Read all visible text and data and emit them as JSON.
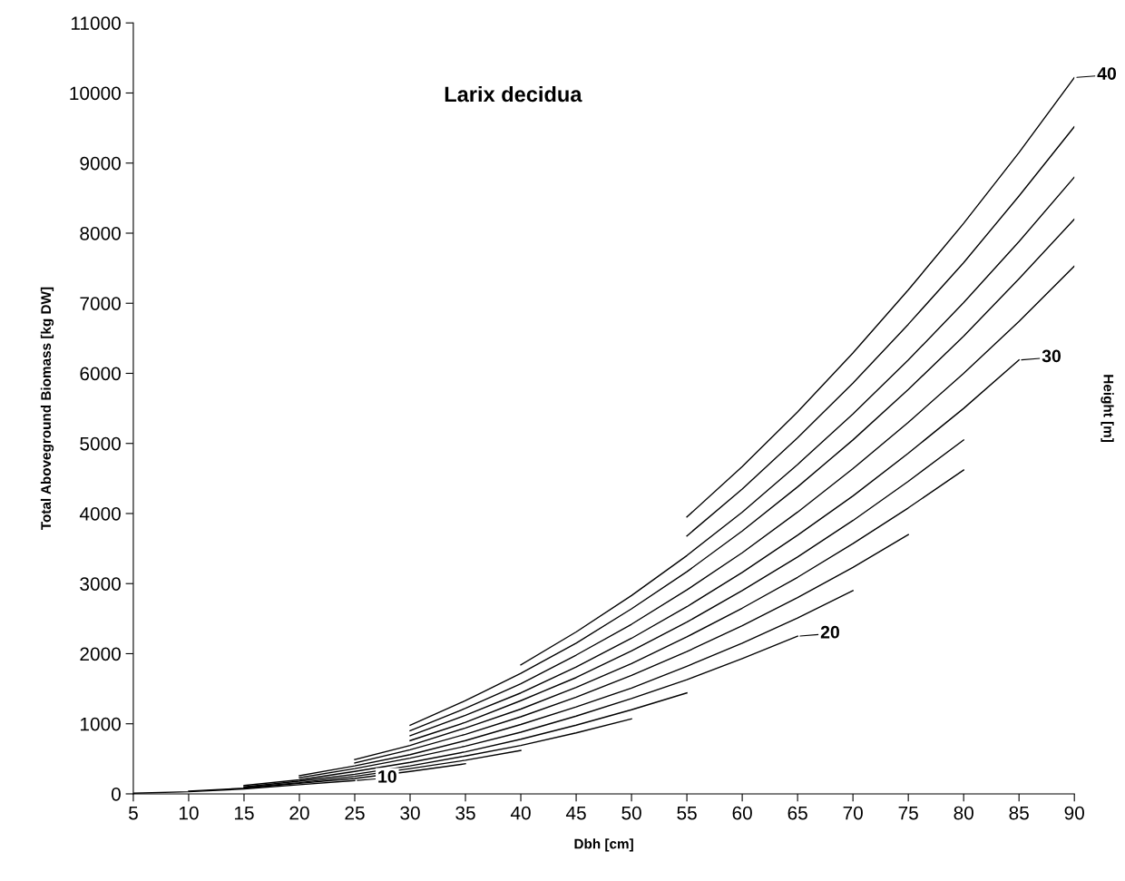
{
  "chart_data": {
    "type": "line",
    "title": "Larix decidua",
    "xlabel": "Dbh [cm]",
    "ylabel": "Total Aboveground Biomass [kg DW]",
    "y2label": "Height [m]",
    "xlim": [
      5,
      90
    ],
    "xticks": [
      5,
      10,
      15,
      20,
      25,
      30,
      35,
      40,
      45,
      50,
      55,
      60,
      65,
      70,
      75,
      80,
      85,
      90
    ],
    "ylim": [
      0,
      11000
    ],
    "yticks": [
      0,
      1000,
      2000,
      3000,
      4000,
      5000,
      6000,
      7000,
      8000,
      9000,
      10000,
      11000
    ],
    "grid": false,
    "legend": false,
    "marker": "none",
    "line_style": "solid",
    "series": [
      {
        "color": "#000000",
        "x": [
          55,
          60,
          65,
          70,
          75,
          80,
          85,
          90
        ],
        "values": [
          3950,
          4670,
          5450,
          6290,
          7190,
          8140,
          9150,
          10220
        ]
      },
      {
        "color": "#000000",
        "x": [
          55,
          60,
          65,
          70,
          75,
          80,
          85,
          90
        ],
        "values": [
          3680,
          4350,
          5080,
          5860,
          6700,
          7580,
          8530,
          9520
        ]
      },
      {
        "color": "#000000",
        "x": [
          40,
          45,
          50,
          55,
          60,
          65,
          70,
          75,
          80,
          85,
          90
        ],
        "values": [
          1840,
          2310,
          2830,
          3400,
          4020,
          4700,
          5420,
          6190,
          7010,
          7880,
          8800
        ]
      },
      {
        "color": "#000000",
        "x": [
          30,
          35,
          40,
          45,
          50,
          55,
          60,
          65,
          70,
          75,
          80,
          85,
          90
        ],
        "values": [
          980,
          1330,
          1720,
          2150,
          2640,
          3170,
          3750,
          4380,
          5050,
          5770,
          6530,
          7350,
          8200
        ]
      },
      {
        "color": "#000000",
        "x": [
          30,
          35,
          40,
          45,
          50,
          55,
          60,
          65,
          70,
          75,
          80,
          85,
          90
        ],
        "values": [
          900,
          1220,
          1570,
          1980,
          2420,
          2910,
          3440,
          4020,
          4640,
          5300,
          6000,
          6740,
          7530
        ]
      },
      {
        "color": "#000000",
        "x": [
          30,
          35,
          40,
          45,
          50,
          55,
          60,
          65,
          70,
          75,
          80,
          85
        ],
        "values": [
          830,
          1120,
          1440,
          1810,
          2220,
          2670,
          3160,
          3690,
          4250,
          4860,
          5500,
          6190
        ]
      },
      {
        "color": "#000000",
        "x": [
          30,
          35,
          40,
          45,
          50,
          55,
          60,
          65,
          70,
          75,
          80
        ],
        "values": [
          760,
          1020,
          1330,
          1660,
          2040,
          2450,
          2900,
          3380,
          3900,
          4460,
          5050
        ]
      },
      {
        "color": "#000000",
        "x": [
          25,
          30,
          35,
          40,
          45,
          50,
          55,
          60,
          65,
          70,
          75,
          80
        ],
        "values": [
          490,
          690,
          940,
          1210,
          1520,
          1860,
          2240,
          2650,
          3090,
          3570,
          4080,
          4620
        ]
      },
      {
        "color": "#000000",
        "x": [
          25,
          30,
          35,
          40,
          45,
          50,
          55,
          60,
          65,
          70,
          75
        ],
        "values": [
          440,
          630,
          850,
          1100,
          1380,
          1690,
          2030,
          2400,
          2800,
          3230,
          3700
        ]
      },
      {
        "color": "#000000",
        "x": [
          20,
          25,
          30,
          35,
          40,
          45,
          50,
          55,
          60,
          65,
          70
        ],
        "values": [
          260,
          400,
          560,
          760,
          990,
          1240,
          1510,
          1820,
          2150,
          2510,
          2900
        ]
      },
      {
        "color": "#000000",
        "x": [
          20,
          25,
          30,
          35,
          40,
          45,
          50,
          55,
          60,
          65
        ],
        "values": [
          230,
          360,
          510,
          680,
          880,
          1110,
          1360,
          1630,
          1930,
          2250
        ]
      },
      {
        "color": "#000000",
        "x": [
          15,
          20,
          25,
          30,
          35,
          40,
          45,
          50,
          55
        ],
        "values": [
          120,
          200,
          320,
          450,
          600,
          780,
          980,
          1200,
          1440
        ]
      },
      {
        "color": "#000000",
        "x": [
          15,
          20,
          25,
          30,
          35,
          40,
          45,
          50
        ],
        "values": [
          100,
          180,
          280,
          400,
          540,
          690,
          870,
          1070
        ]
      },
      {
        "color": "#000000",
        "x": [
          15,
          20,
          25,
          30,
          35,
          40
        ],
        "values": [
          90,
          160,
          250,
          360,
          480,
          620
        ]
      },
      {
        "color": "#000000",
        "x": [
          10,
          15,
          20,
          25,
          30,
          35
        ],
        "values": [
          40,
          80,
          150,
          220,
          320,
          430
        ]
      },
      {
        "color": "#000000",
        "x": [
          5,
          10,
          15,
          20,
          25
        ],
        "values": [
          10,
          30,
          70,
          130,
          190
        ]
      }
    ],
    "annotations": [
      {
        "text": "40",
        "x": 90,
        "y": 10220
      },
      {
        "text": "30",
        "x": 85,
        "y": 6190
      },
      {
        "text": "20",
        "x": 65,
        "y": 2250
      },
      {
        "text": "10",
        "x": 25,
        "y": 190
      }
    ]
  }
}
